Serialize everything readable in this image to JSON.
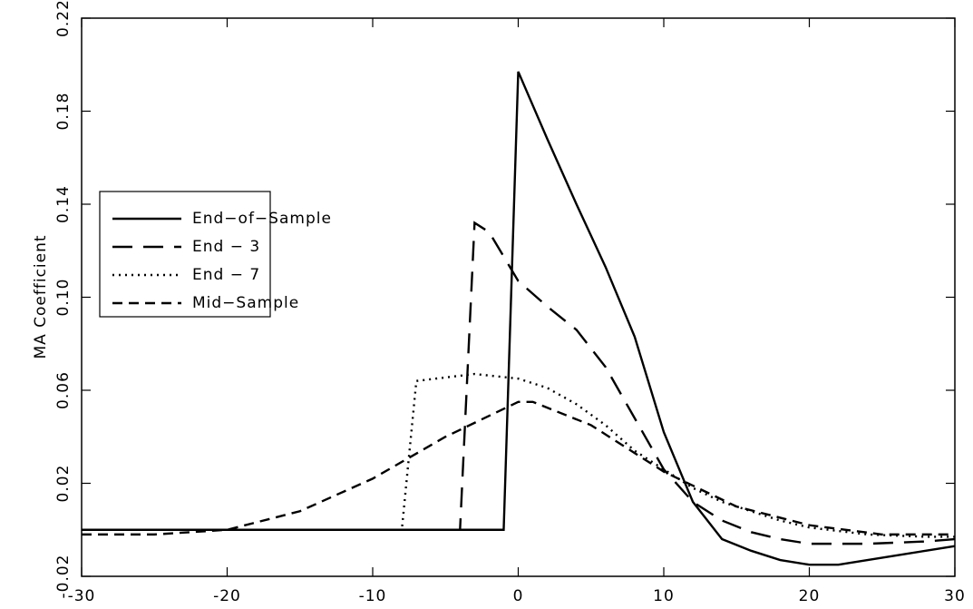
{
  "chart_data": {
    "type": "line",
    "ylabel": "MA Coefficient",
    "xlim": [
      -30,
      30
    ],
    "xticks": [
      -30,
      -20,
      -10,
      0,
      10,
      20,
      30
    ],
    "ylim": [
      -0.02,
      0.22
    ],
    "yticks": [
      -0.02,
      0.02,
      0.06,
      {
        "value": 0.1,
        "label": "0.10"
      },
      0.14,
      0.18,
      0.22
    ],
    "legend": "center left",
    "series": [
      {
        "name": "End−of−Sample",
        "color": "#000000",
        "style": "solid",
        "x": [
          -30,
          -1,
          0,
          2,
          4,
          6,
          8,
          10,
          12,
          14,
          16,
          18,
          20,
          22,
          24,
          26,
          28,
          30
        ],
        "values": [
          0,
          0,
          0.197,
          0.168,
          0.14,
          0.113,
          0.083,
          0.042,
          0.012,
          -0.004,
          -0.009,
          -0.013,
          -0.015,
          -0.015,
          -0.013,
          -0.011,
          -0.009,
          -0.007
        ]
      },
      {
        "name": "End − 3",
        "color": "#000000",
        "style": "long-dash",
        "x": [
          -30,
          -4,
          -3,
          -2,
          0,
          2,
          4,
          6,
          8,
          10,
          12,
          14,
          16,
          18,
          20,
          24,
          28,
          30
        ],
        "values": [
          0,
          0,
          0.132,
          0.128,
          0.107,
          0.096,
          0.086,
          0.07,
          0.048,
          0.026,
          0.012,
          0.004,
          -0.001,
          -0.004,
          -0.006,
          -0.006,
          -0.005,
          -0.004
        ]
      },
      {
        "name": "End − 7",
        "color": "#000000",
        "style": "dotted",
        "x": [
          -30,
          -8,
          -7,
          -3,
          0,
          2,
          4,
          6,
          8,
          10,
          12,
          14,
          16,
          18,
          20,
          24,
          28,
          30
        ],
        "values": [
          0,
          0,
          0.064,
          0.067,
          0.065,
          0.061,
          0.054,
          0.045,
          0.034,
          0.026,
          0.018,
          0.012,
          0.008,
          0.004,
          0.001,
          -0.002,
          -0.003,
          -0.003
        ]
      },
      {
        "name": "Mid−Sample",
        "color": "#000000",
        "style": "short-dash",
        "x": [
          -30,
          -25,
          -20,
          -15,
          -10,
          -5,
          0,
          1,
          5,
          10,
          15,
          20,
          25,
          30
        ],
        "values": [
          -0.002,
          -0.002,
          0,
          0.008,
          0.022,
          0.04,
          0.055,
          0.055,
          0.045,
          0.025,
          0.01,
          0.002,
          -0.002,
          -0.002
        ]
      }
    ]
  }
}
